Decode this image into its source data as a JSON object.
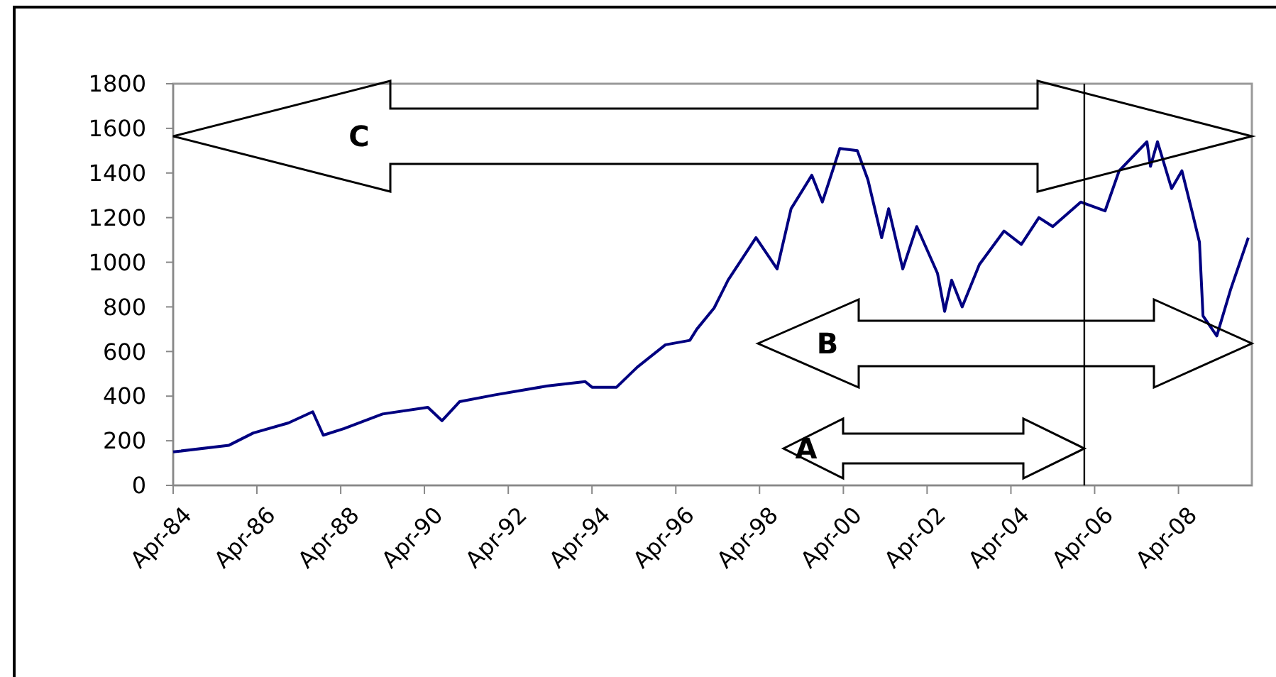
{
  "chart_data": {
    "type": "line",
    "x": [
      "1984-04",
      "1985-08",
      "1986-03",
      "1987-01",
      "1987-08",
      "1987-11",
      "1988-05",
      "1989-04",
      "1990-05",
      "1990-09",
      "1991-02",
      "1991-12",
      "1993-03",
      "1994-02",
      "1994-04",
      "1994-11",
      "1995-05",
      "1996-01",
      "1996-08",
      "1996-10",
      "1997-03",
      "1997-07",
      "1998-03",
      "1998-09",
      "1999-01",
      "1999-07",
      "1999-10",
      "2000-03",
      "2000-08",
      "2000-11",
      "2001-03",
      "2001-05",
      "2001-09",
      "2002-01",
      "2002-07",
      "2002-09",
      "2002-11",
      "2003-02",
      "2003-07",
      "2004-02",
      "2004-07",
      "2004-12",
      "2005-04",
      "2005-12",
      "2006-07",
      "2006-11",
      "2007-07",
      "2007-08",
      "2007-10",
      "2008-02",
      "2008-05",
      "2008-08",
      "2008-10",
      "2008-11",
      "2009-03",
      "2009-07",
      "2009-12"
    ],
    "series": [
      {
        "color": "#000080",
        "values": [
          150,
          180,
          235,
          280,
          330,
          225,
          255,
          320,
          350,
          290,
          375,
          405,
          445,
          465,
          440,
          440,
          530,
          630,
          650,
          700,
          795,
          920,
          1110,
          970,
          1240,
          1390,
          1270,
          1510,
          1500,
          1370,
          1110,
          1240,
          970,
          1160,
          950,
          780,
          920,
          800,
          990,
          1140,
          1080,
          1200,
          1160,
          1270,
          1230,
          1410,
          1540,
          1430,
          1540,
          1330,
          1410,
          1220,
          1090,
          760,
          670,
          880,
          1110
        ]
      }
    ],
    "xlim": [
      "1984-04",
      "2010-01"
    ],
    "xticks": [
      {
        "value": "1984-04",
        "label": "Apr-84"
      },
      {
        "value": "1986-04",
        "label": "Apr-86"
      },
      {
        "value": "1988-04",
        "label": "Apr-88"
      },
      {
        "value": "1990-04",
        "label": "Apr-90"
      },
      {
        "value": "1992-04",
        "label": "Apr-92"
      },
      {
        "value": "1994-04",
        "label": "Apr-94"
      },
      {
        "value": "1996-04",
        "label": "Apr-96"
      },
      {
        "value": "1998-04",
        "label": "Apr-98"
      },
      {
        "value": "2000-04",
        "label": "Apr-00"
      },
      {
        "value": "2002-04",
        "label": "Apr-02"
      },
      {
        "value": "2004-04",
        "label": "Apr-04"
      },
      {
        "value": "2006-04",
        "label": "Apr-06"
      },
      {
        "value": "2008-04",
        "label": "Apr-08"
      }
    ],
    "ylim": [
      0,
      1800
    ],
    "yticks": [
      0,
      200,
      400,
      600,
      800,
      1000,
      1200,
      1400,
      1600,
      1800
    ],
    "ref_lines": [
      {
        "axis": "x",
        "value": "2006-01",
        "color": "#000000"
      }
    ],
    "annotations": [
      "C",
      "B",
      "A"
    ],
    "grid": false,
    "marker": "none",
    "line_style": "solid"
  }
}
